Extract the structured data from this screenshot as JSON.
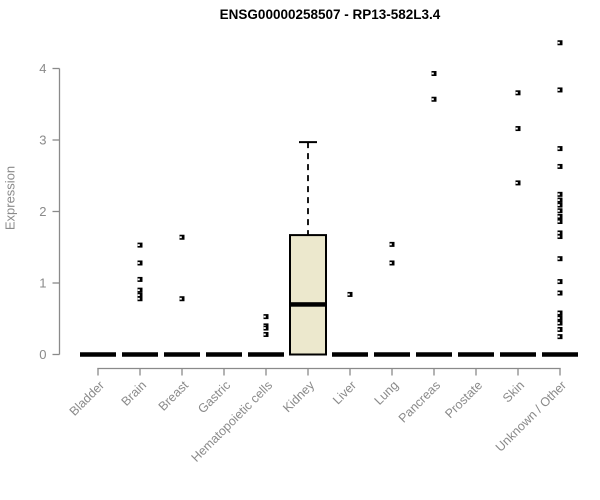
{
  "chart_data": {
    "type": "boxplot",
    "title": "ENSG00000258507 - RP13-582L3.4",
    "ylabel": "Expression",
    "ylim": [
      0,
      4.4
    ],
    "yticks": [
      0,
      1,
      2,
      3,
      4
    ],
    "grid": false,
    "legend": false,
    "categories": [
      "Bladder",
      "Brain",
      "Breast",
      "Gastric",
      "Hematopoietic cells",
      "Kidney",
      "Liver",
      "Lung",
      "Pancreas",
      "Prostate",
      "Skin",
      "Unknown / Other"
    ],
    "boxes": [
      {
        "category": "Bladder",
        "q1": 0,
        "median": 0,
        "q3": 0,
        "whisker_low": 0,
        "whisker_high": 0,
        "outliers": []
      },
      {
        "category": "Brain",
        "q1": 0,
        "median": 0,
        "q3": 0,
        "whisker_low": 0,
        "whisker_high": 0,
        "outliers": [
          1.53,
          1.28,
          1.05,
          0.9,
          0.83,
          0.78
        ]
      },
      {
        "category": "Breast",
        "q1": 0,
        "median": 0,
        "q3": 0,
        "whisker_low": 0,
        "whisker_high": 0,
        "outliers": [
          1.64,
          0.78
        ]
      },
      {
        "category": "Gastric",
        "q1": 0,
        "median": 0,
        "q3": 0,
        "whisker_low": 0,
        "whisker_high": 0,
        "outliers": []
      },
      {
        "category": "Hematopoietic cells",
        "q1": 0,
        "median": 0,
        "q3": 0,
        "whisker_low": 0,
        "whisker_high": 0,
        "outliers": [
          0.53,
          0.4,
          0.37,
          0.28
        ]
      },
      {
        "category": "Kidney",
        "q1": 0,
        "median": 0.7,
        "q3": 1.67,
        "whisker_low": 0,
        "whisker_high": 2.97,
        "outliers": []
      },
      {
        "category": "Liver",
        "q1": 0,
        "median": 0,
        "q3": 0,
        "whisker_low": 0,
        "whisker_high": 0,
        "outliers": [
          0.84
        ]
      },
      {
        "category": "Lung",
        "q1": 0,
        "median": 0,
        "q3": 0,
        "whisker_low": 0,
        "whisker_high": 0,
        "outliers": [
          1.54,
          1.28
        ]
      },
      {
        "category": "Pancreas",
        "q1": 0,
        "median": 0,
        "q3": 0,
        "whisker_low": 0,
        "whisker_high": 0,
        "outliers": [
          3.93,
          3.57
        ]
      },
      {
        "category": "Prostate",
        "q1": 0,
        "median": 0,
        "q3": 0,
        "whisker_low": 0,
        "whisker_high": 0,
        "outliers": []
      },
      {
        "category": "Skin",
        "q1": 0,
        "median": 0,
        "q3": 0,
        "whisker_low": 0,
        "whisker_high": 0,
        "outliers": [
          3.66,
          3.16,
          2.4
        ]
      },
      {
        "category": "Unknown / Other",
        "q1": 0,
        "median": 0,
        "q3": 0,
        "whisker_low": 0,
        "whisker_high": 0,
        "outliers": [
          4.36,
          3.7,
          2.88,
          2.63,
          2.24,
          2.16,
          2.09,
          2.01,
          1.93,
          1.86,
          1.7,
          1.65,
          1.34,
          1.02,
          0.86,
          0.58,
          0.51,
          0.44,
          0.35,
          0.25
        ]
      }
    ],
    "colors": {
      "box_fill": "#ece8cd",
      "box_stroke": "#000000",
      "median": "#000000",
      "outlier": "#000000",
      "axis": "#8a8a8a",
      "tick_text": "#8a8a8a",
      "title_text": "#000000",
      "background": "#ffffff"
    }
  }
}
